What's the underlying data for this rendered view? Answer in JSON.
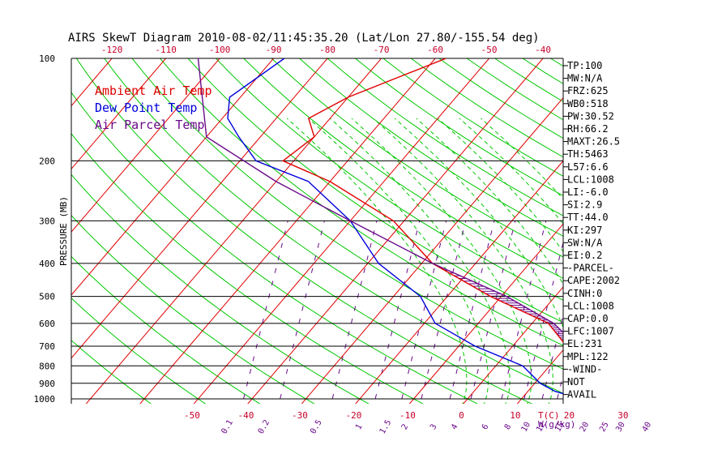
{
  "chart_data": {
    "type": "line",
    "title": "AIRS SkewT Diagram 2010-08-02/11:45:35.20 (Lat/Lon 27.80/-155.54 deg)",
    "ylabel": "PRESSURE (MB)",
    "xlabel": "T(C)",
    "mixing_ratio_unit": "W(g/kg)",
    "y_scale": "log",
    "ylim": [
      1050,
      100
    ],
    "xlim": [
      -52,
      38
    ],
    "grid": true,
    "legend_position": "top-left",
    "legend": [
      {
        "label": "Ambient Air Temp",
        "color": "#e00000"
      },
      {
        "label": "Dew Point Temp",
        "color": "#0000dd"
      },
      {
        "label": "Air Parcel Temp",
        "color": "#6a0a8a"
      }
    ],
    "pressure_ticks": [
      100,
      200,
      300,
      400,
      500,
      600,
      700,
      800,
      900,
      1000
    ],
    "top_temp_ticks": [
      -120,
      -110,
      -100,
      -90,
      -80,
      -70,
      -60,
      -50,
      -40
    ],
    "bottom_temp_ticks": [
      -50,
      -40,
      -30,
      -20,
      -10,
      0,
      10,
      20,
      30
    ],
    "mixing_ratio_ticks": [
      0.1,
      0.2,
      0.5,
      1,
      1.5,
      2,
      3,
      4,
      6,
      8,
      10,
      12,
      15,
      20,
      25,
      30,
      40
    ],
    "series": [
      {
        "name": "Ambient Air Temp",
        "color": "#e00000",
        "x": [
          22,
          19,
          16,
          14,
          10,
          3,
          -12,
          -28,
          -42,
          -60,
          -72,
          -70,
          -74,
          -70,
          -58
        ],
        "y": [
          1000,
          950,
          900,
          800,
          700,
          600,
          500,
          400,
          300,
          230,
          200,
          170,
          150,
          130,
          100
        ]
      },
      {
        "name": "Dew Point Temp",
        "color": "#0000dd",
        "x": [
          21,
          15,
          11,
          5,
          -7,
          -18,
          -25,
          -38,
          -50,
          -64,
          -77,
          -84,
          -89,
          -92,
          -88
        ],
        "y": [
          1000,
          950,
          900,
          800,
          700,
          600,
          500,
          400,
          300,
          230,
          200,
          170,
          150,
          130,
          100
        ]
      },
      {
        "name": "Air Parcel Temp",
        "color": "#6a0a8a",
        "x": [
          22,
          20.5,
          19.5,
          18,
          16,
          12,
          4,
          -9,
          -28,
          -50,
          -70,
          -90,
          -104
        ],
        "y": [
          1000,
          950,
          900,
          850,
          800,
          700,
          600,
          500,
          400,
          300,
          230,
          170,
          100
        ]
      }
    ],
    "indices": [
      "TP:100",
      "MW:N/A",
      "FRZ:625",
      "WB0:518",
      "PW:30.52",
      "RH:66.2",
      "MAXT:26.5",
      "TH:5463",
      "L57:6.6",
      "LCL:1008",
      "LI:-6.0",
      "SI:2.9",
      "TT:44.0",
      "KI:297",
      "SW:N/A",
      "EI:0.2",
      "-PARCEL-",
      "CAPE:2002",
      "CINH:0",
      "LCL:1008",
      "CAP:0.0",
      "LFC:1007",
      "EL:231",
      "MPL:122",
      "-WIND-",
      "NOT",
      "AVAIL"
    ]
  }
}
